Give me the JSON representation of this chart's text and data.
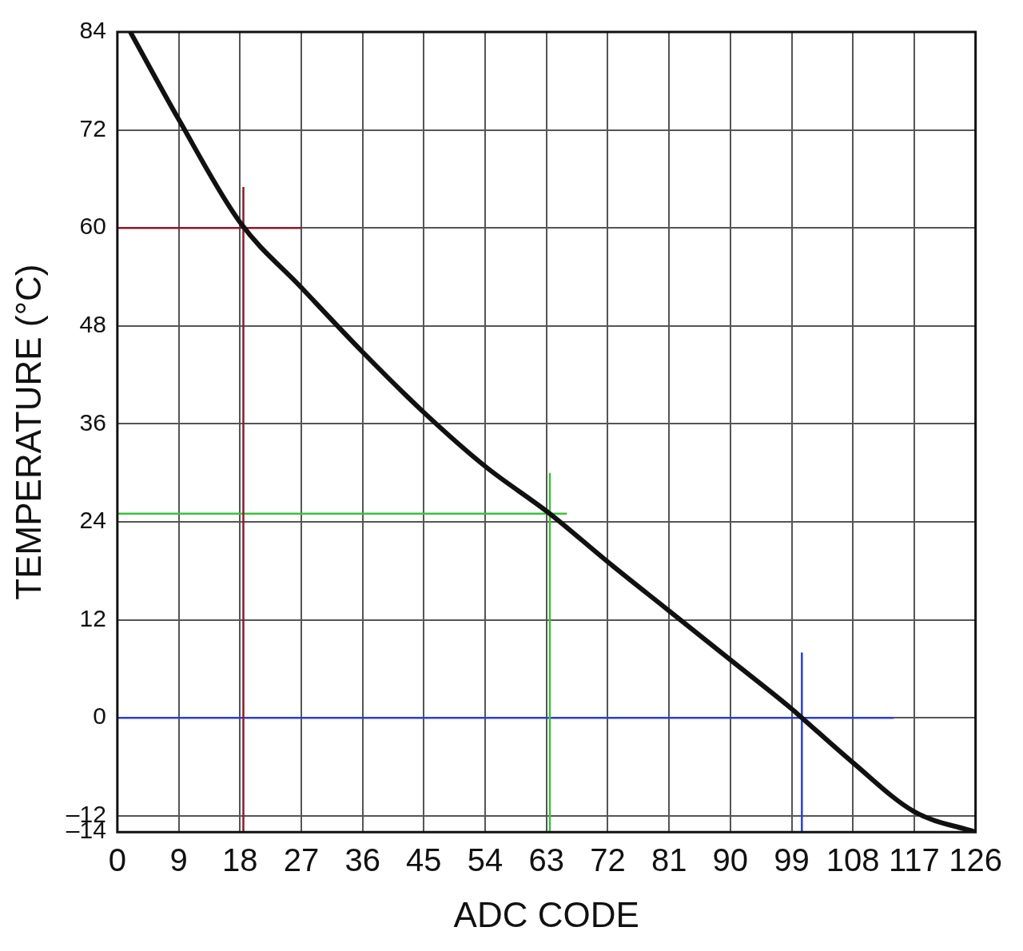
{
  "chart_data": {
    "type": "line",
    "xlabel": "ADC CODE",
    "ylabel": "TEMPERATURE (°C)",
    "xlim": [
      0,
      126
    ],
    "xticks": [
      0,
      9,
      18,
      27,
      36,
      45,
      54,
      63,
      72,
      81,
      90,
      99,
      108,
      117,
      126
    ],
    "ylim": [
      -14,
      84
    ],
    "yticks": [
      {
        "value": -14,
        "label": "–14"
      },
      {
        "value": -12,
        "label": "–12"
      },
      0,
      12,
      24,
      36,
      48,
      60,
      72,
      84
    ],
    "grid": true,
    "series": [
      {
        "color": "#111111",
        "x": [
          1.9,
          9,
          18,
          27,
          36,
          45,
          54,
          63.5,
          72,
          81,
          90,
          99,
          100.5,
          108,
          117,
          126
        ],
        "values": [
          84,
          73.3,
          60.7,
          52.7,
          44.8,
          37.4,
          30.8,
          25,
          19.1,
          13.1,
          7.1,
          1.1,
          0,
          -5.5,
          -11.5,
          -14
        ]
      },
      {
        "type": "line",
        "color": "#8b1a2b",
        "x": [
          0,
          27
        ],
        "values": [
          60,
          60
        ]
      },
      {
        "type": "line",
        "color": "#8b1a2b",
        "x": [
          18.5,
          18.5
        ],
        "values": [
          -14,
          65
        ]
      },
      {
        "type": "line",
        "color": "#3cc13c",
        "x": [
          0,
          66
        ],
        "values": [
          25,
          25
        ]
      },
      {
        "type": "line",
        "color": "#3cc13c",
        "x": [
          63.5,
          63.5
        ],
        "values": [
          -14,
          30
        ]
      },
      {
        "type": "line",
        "color": "#2a3fd6",
        "x": [
          0,
          114
        ],
        "values": [
          0,
          0
        ]
      },
      {
        "type": "line",
        "color": "#2a3fd6",
        "x": [
          100.5,
          100.5
        ],
        "values": [
          -14,
          8
        ]
      }
    ]
  }
}
